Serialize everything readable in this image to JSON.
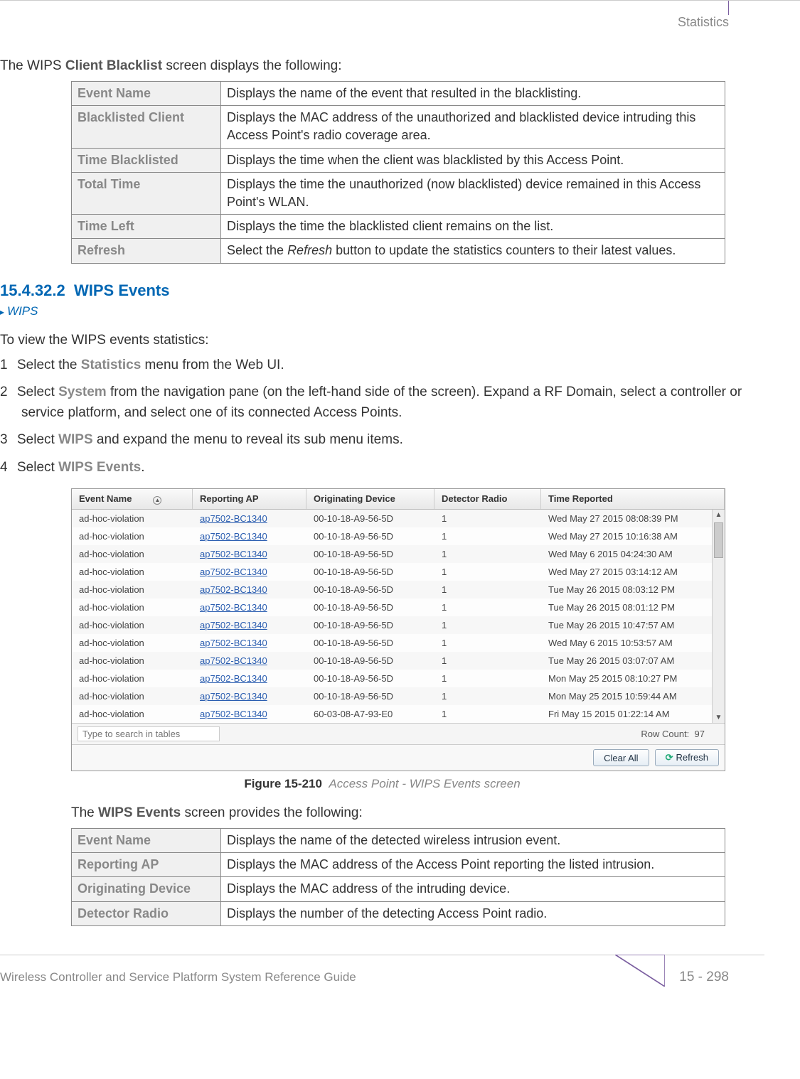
{
  "header": {
    "section": "Statistics"
  },
  "intro1": "The WIPS Client Blacklist screen displays the following:",
  "table1": {
    "rows": [
      {
        "label": "Event Name",
        "desc": "Displays the name of the event that resulted in the blacklisting."
      },
      {
        "label": "Blacklisted Client",
        "desc": "Displays the MAC address of the unauthorized and blacklisted device intruding this Access Point's radio coverage area."
      },
      {
        "label": "Time Blacklisted",
        "desc": "Displays the time when the client was blacklisted by this Access Point."
      },
      {
        "label": "Total Time",
        "desc": "Displays the time the unauthorized (now blacklisted) device remained in this Access Point's WLAN."
      },
      {
        "label": "Time Left",
        "desc": "Displays the time the blacklisted client remains on the list."
      },
      {
        "label": "Refresh",
        "desc_pre": "Select the ",
        "desc_italic": "Refresh",
        "desc_post": " button to update the statistics counters to their latest values."
      }
    ]
  },
  "section": {
    "number": "15.4.32.2",
    "title": "WIPS Events"
  },
  "breadcrumb": "WIPS",
  "intro2": "To view the WIPS events statistics:",
  "steps": [
    {
      "n": "1",
      "pre": "Select the ",
      "bold": "Statistics",
      "post": " menu from the Web UI."
    },
    {
      "n": "2",
      "pre": "Select ",
      "bold": "System",
      "post": " from the navigation pane (on the left-hand side of the screen). Expand a RF Domain, select a controller or service platform, and select one of its connected Access Points."
    },
    {
      "n": "3",
      "pre": "Select ",
      "bold": "WIPS",
      "post": " and expand the menu to reveal its sub menu items."
    },
    {
      "n": "4",
      "pre": "Select ",
      "bold": "WIPS Events",
      "post": "."
    }
  ],
  "screenshot": {
    "columns": [
      "Event Name",
      "Reporting AP",
      "Originating Device",
      "Detector Radio",
      "Time Reported"
    ],
    "search_placeholder": "Type to search in tables",
    "rowcount_label": "Row Count:",
    "rowcount": "97",
    "buttons": {
      "clear": "Clear All",
      "refresh": "Refresh"
    },
    "rows": [
      {
        "event": "ad-hoc-violation",
        "ap": "ap7502-BC1340",
        "orig": "00-10-18-A9-56-5D",
        "det": "1",
        "time": "Wed May 27 2015 08:08:39 PM"
      },
      {
        "event": "ad-hoc-violation",
        "ap": "ap7502-BC1340",
        "orig": "00-10-18-A9-56-5D",
        "det": "1",
        "time": "Wed May 27 2015 10:16:38 AM"
      },
      {
        "event": "ad-hoc-violation",
        "ap": "ap7502-BC1340",
        "orig": "00-10-18-A9-56-5D",
        "det": "1",
        "time": "Wed May 6 2015 04:24:30 AM"
      },
      {
        "event": "ad-hoc-violation",
        "ap": "ap7502-BC1340",
        "orig": "00-10-18-A9-56-5D",
        "det": "1",
        "time": "Wed May 27 2015 03:14:12 AM"
      },
      {
        "event": "ad-hoc-violation",
        "ap": "ap7502-BC1340",
        "orig": "00-10-18-A9-56-5D",
        "det": "1",
        "time": "Tue May 26 2015 08:03:12 PM"
      },
      {
        "event": "ad-hoc-violation",
        "ap": "ap7502-BC1340",
        "orig": "00-10-18-A9-56-5D",
        "det": "1",
        "time": "Tue May 26 2015 08:01:12 PM"
      },
      {
        "event": "ad-hoc-violation",
        "ap": "ap7502-BC1340",
        "orig": "00-10-18-A9-56-5D",
        "det": "1",
        "time": "Tue May 26 2015 10:47:57 AM"
      },
      {
        "event": "ad-hoc-violation",
        "ap": "ap7502-BC1340",
        "orig": "00-10-18-A9-56-5D",
        "det": "1",
        "time": "Wed May 6 2015 10:53:57 AM"
      },
      {
        "event": "ad-hoc-violation",
        "ap": "ap7502-BC1340",
        "orig": "00-10-18-A9-56-5D",
        "det": "1",
        "time": "Tue May 26 2015 03:07:07 AM"
      },
      {
        "event": "ad-hoc-violation",
        "ap": "ap7502-BC1340",
        "orig": "00-10-18-A9-56-5D",
        "det": "1",
        "time": "Mon May 25 2015 08:10:27 PM"
      },
      {
        "event": "ad-hoc-violation",
        "ap": "ap7502-BC1340",
        "orig": "00-10-18-A9-56-5D",
        "det": "1",
        "time": "Mon May 25 2015 10:59:44 AM"
      },
      {
        "event": "ad-hoc-violation",
        "ap": "ap7502-BC1340",
        "orig": "60-03-08-A7-93-E0",
        "det": "1",
        "time": "Fri May 15 2015 01:22:14 AM"
      }
    ]
  },
  "figure": {
    "number": "Figure 15-210",
    "title": "Access Point - WIPS Events screen"
  },
  "intro3_pre": "The ",
  "intro3_bold": "WIPS Events",
  "intro3_post": " screen provides the following:",
  "table2": {
    "rows": [
      {
        "label": "Event Name",
        "desc": "Displays the name of the detected wireless intrusion event."
      },
      {
        "label": "Reporting AP",
        "desc": "Displays the MAC address of the Access Point reporting the listed intrusion."
      },
      {
        "label": "Originating Device",
        "desc": "Displays the MAC address of the intruding device."
      },
      {
        "label": "Detector Radio",
        "desc": "Displays the number of the detecting Access Point radio."
      }
    ]
  },
  "footer": {
    "doc_title": "Wireless Controller and Service Platform System Reference Guide",
    "page": "15 - 298"
  }
}
